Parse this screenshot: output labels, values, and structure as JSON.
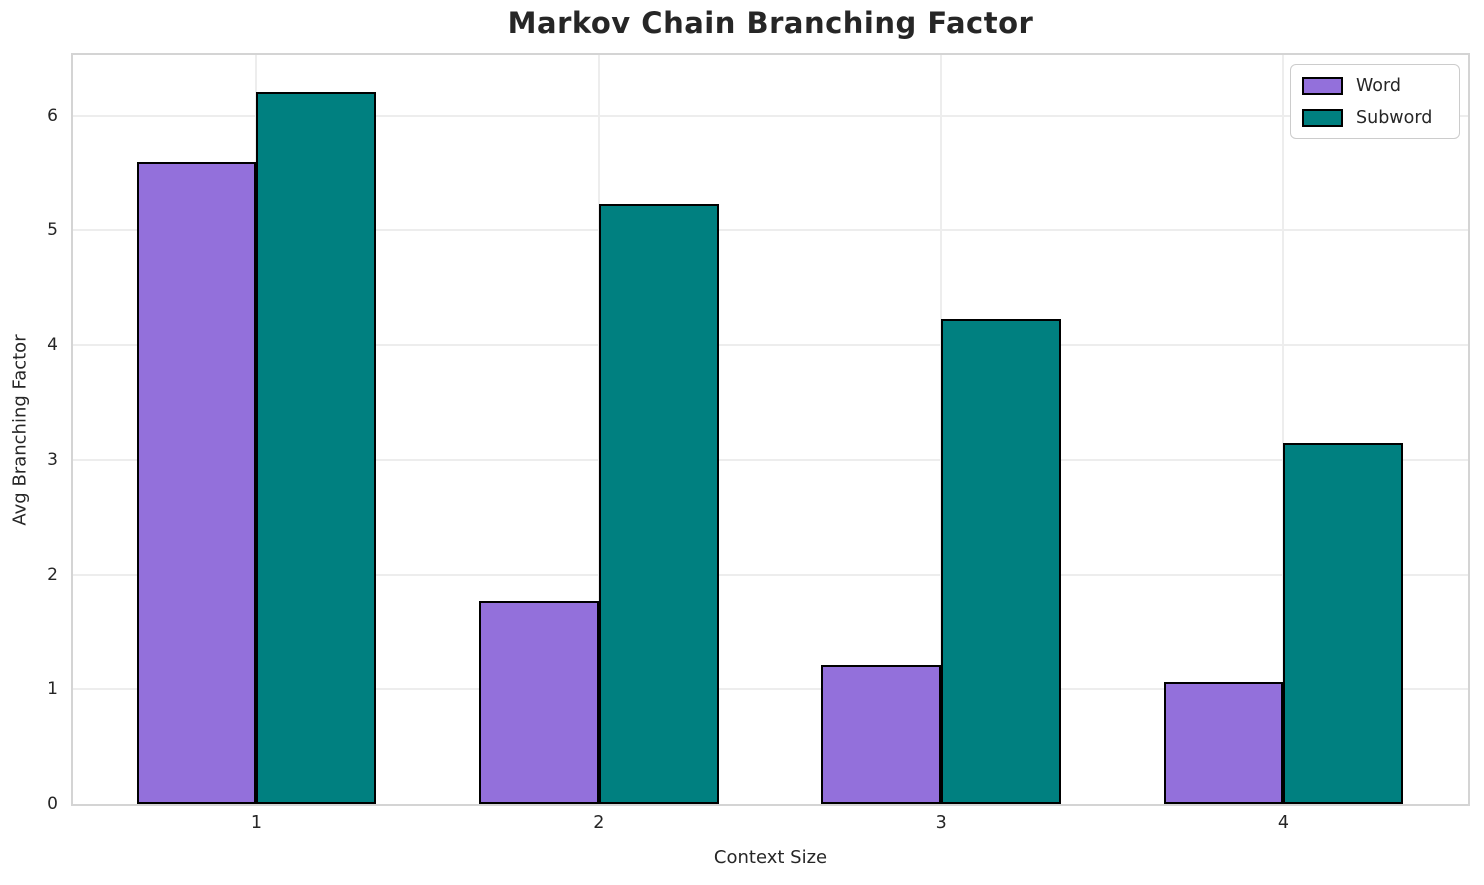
{
  "title": "Markov Chain Branching Factor",
  "chart_data": {
    "type": "bar",
    "title": "Markov Chain Branching Factor",
    "xlabel": "Context Size",
    "ylabel": "Avg Branching Factor",
    "categories": [
      "1",
      "2",
      "3",
      "4"
    ],
    "series": [
      {
        "name": "Word",
        "color": "#9370DB",
        "values": [
          5.6,
          1.77,
          1.21,
          1.06
        ]
      },
      {
        "name": "Subword",
        "color": "#008080",
        "values": [
          6.21,
          5.23,
          4.23,
          3.15
        ]
      }
    ],
    "bar_width": 0.35,
    "xlim": [
      0.464,
      4.539
    ],
    "ylim": [
      0,
      6.53
    ],
    "yticks": [
      0,
      1,
      2,
      3,
      4,
      5,
      6
    ],
    "grid": true,
    "legend_position": "upper right",
    "bar_edge_color": "#000000"
  },
  "colors": {
    "word_fill": "#9370DB",
    "subword_fill": "#008080",
    "text": "#262626",
    "grid": "#ededed",
    "spine": "#d4d4d4",
    "background": "#ffffff"
  }
}
